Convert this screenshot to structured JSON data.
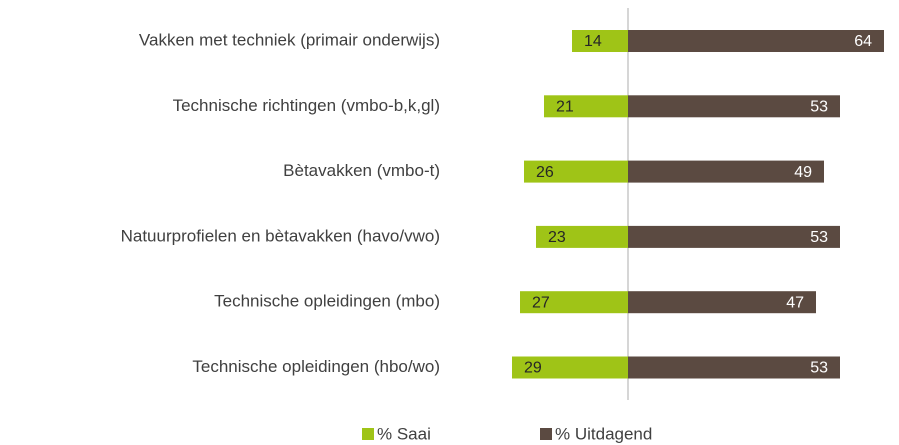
{
  "chart_data": {
    "type": "bar",
    "orientation": "horizontal",
    "categories": [
      "Vakken met techniek (primair onderwijs)",
      "Technische richtingen (vmbo-b,k,gl)",
      "Bètavakken (vmbo-t)",
      "Natuurprofielen en bètavakken (havo/vwo)",
      "Technische opleidingen (mbo)",
      "Technische opleidingen (hbo/wo)"
    ],
    "series": [
      {
        "name": "% Saai",
        "color": "#9fc417",
        "values": [
          14,
          21,
          26,
          23,
          27,
          29
        ]
      },
      {
        "name": "% Uitdagend",
        "color": "#5b4a41",
        "values": [
          64,
          53,
          49,
          53,
          47,
          53
        ]
      }
    ],
    "legend": "bottom"
  }
}
